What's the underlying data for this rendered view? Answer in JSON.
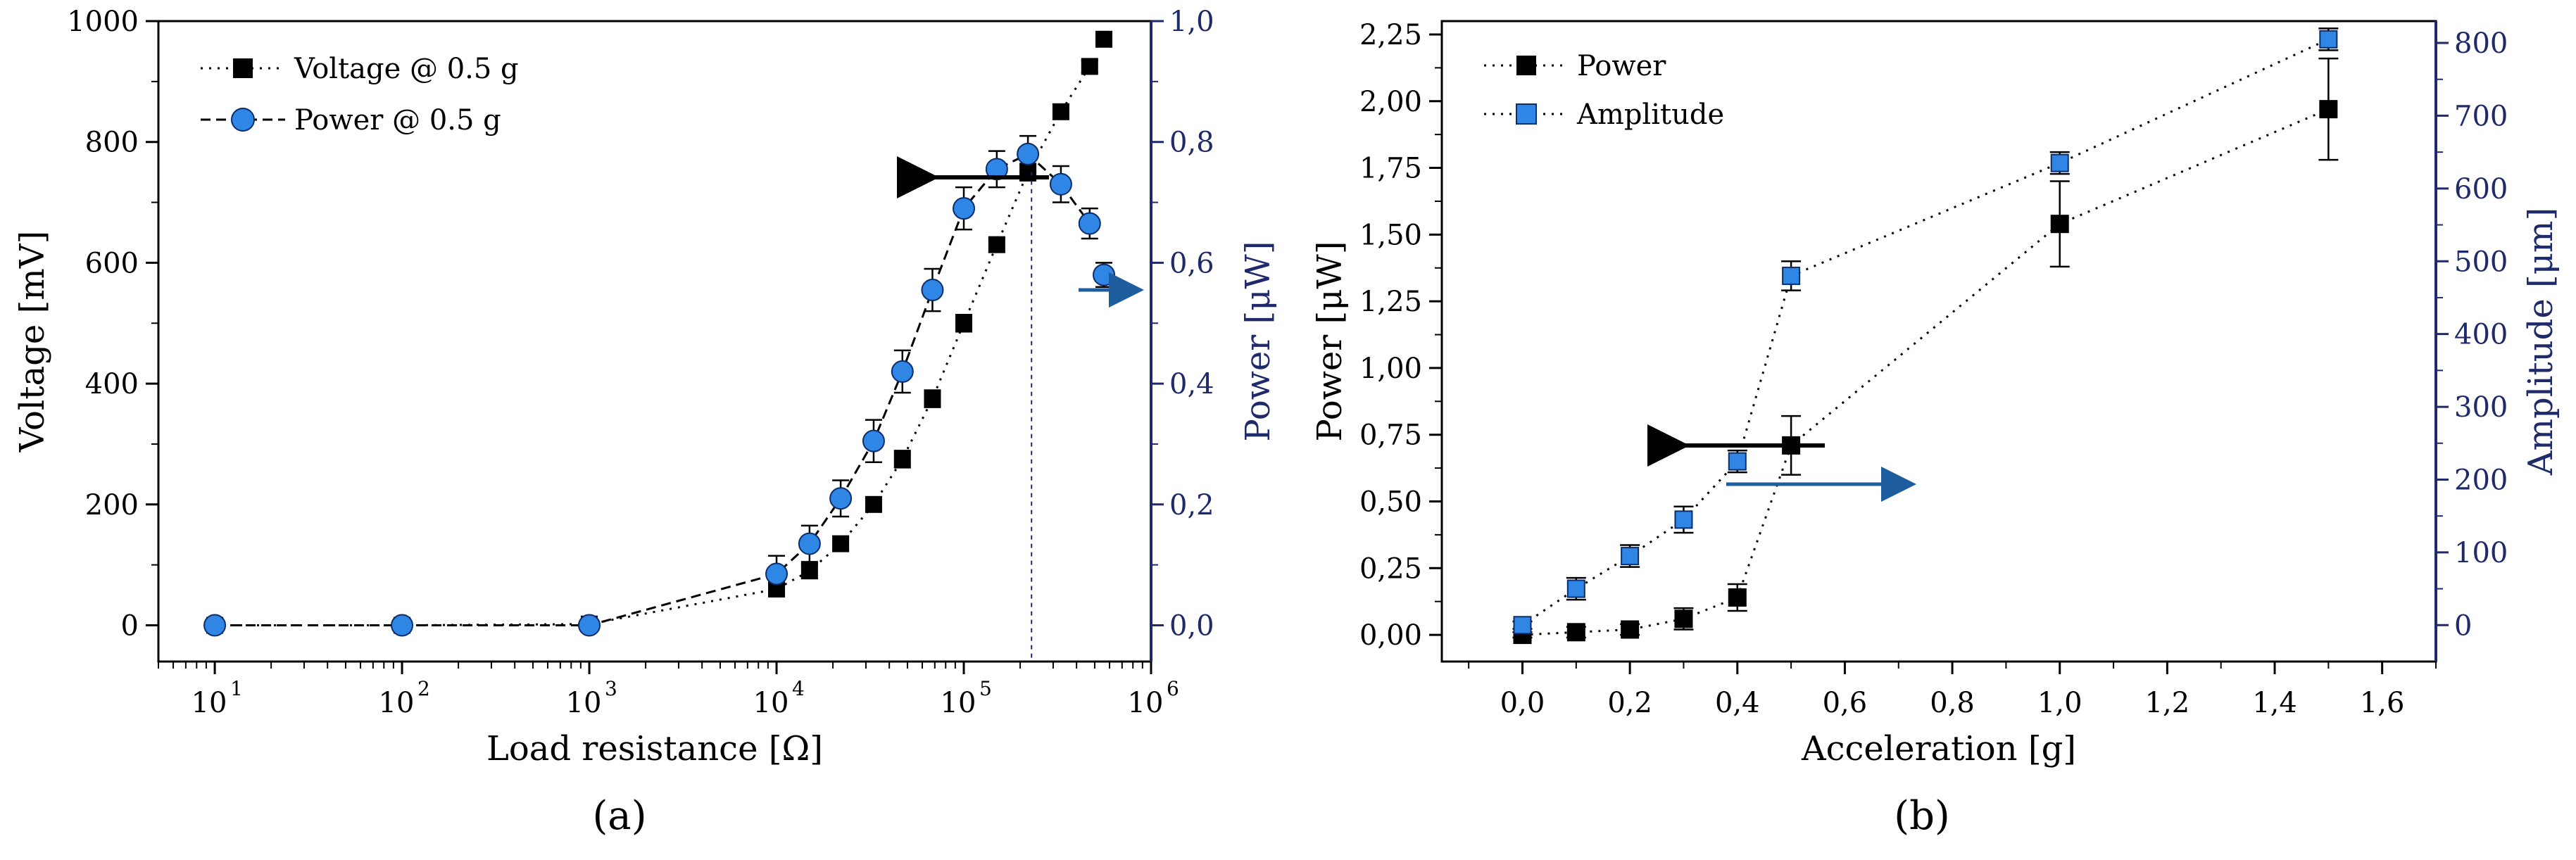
{
  "colors": {
    "axis_left": "#000000",
    "axis_right": "#1f2a6b",
    "blue_marker": "#2f86e4",
    "arrow_blue": "#1f5e9e"
  },
  "chart_data": [
    {
      "type": "scatter",
      "panel_label": "(a)",
      "xlabel": "Load resistance  [Ω]",
      "ylabel": "Voltage  [mV]",
      "y2label": "Power  [μW]",
      "xscale": "log",
      "xlim": [
        5,
        1000000
      ],
      "ylim": [
        -60,
        1000
      ],
      "y2lim": [
        -0.06,
        1.0
      ],
      "x_ticks": [
        10,
        100,
        1000,
        10000,
        100000,
        1000000
      ],
      "x_tick_exponents": [
        "1",
        "2",
        "3",
        "4",
        "5",
        "6"
      ],
      "y_ticks": [
        "0",
        "200",
        "400",
        "600",
        "800",
        "1000"
      ],
      "y2_ticks": [
        "0,0",
        "0,2",
        "0,4",
        "0,6",
        "0,8",
        "1,0"
      ],
      "legend_position": "top-left",
      "series": [
        {
          "name": "Voltage @ 0.5 g",
          "axis": "left",
          "marker": "square",
          "line": "dotted",
          "x": [
            10,
            100,
            1000,
            10000,
            15000,
            22000,
            33000,
            47000,
            68000,
            100000,
            150000,
            220000,
            330000,
            470000
          ],
          "y": [
            0,
            0,
            2,
            60,
            90,
            135,
            200,
            275,
            375,
            500,
            630,
            750,
            850,
            925
          ],
          "err": [
            3,
            3,
            3,
            10,
            12,
            12,
            12,
            14,
            14,
            14,
            12,
            14,
            12,
            10
          ]
        },
        {
          "name": "Power @ 0.5 g",
          "axis": "right",
          "marker": "circle",
          "line": "dashed",
          "x": [
            10,
            100,
            1000,
            10000,
            15000,
            22000,
            33000,
            47000,
            68000,
            100000,
            150000,
            220000,
            330000,
            470000
          ],
          "y": [
            0.0,
            0.0,
            0.0,
            0.085,
            0.135,
            0.21,
            0.305,
            0.42,
            0.555,
            0.69,
            0.755,
            0.78,
            0.73,
            0.665
          ],
          "err": [
            0.004,
            0.004,
            0.004,
            0.03,
            0.03,
            0.03,
            0.035,
            0.035,
            0.035,
            0.035,
            0.03,
            0.03,
            0.03,
            0.025
          ]
        }
      ],
      "extra_points": [
        {
          "x": 560000,
          "y": 970,
          "err": 8,
          "axis": "left"
        },
        {
          "x": 560000,
          "y": 0.58,
          "err": 0.02,
          "axis": "right"
        }
      ],
      "vline_x": 230000
    },
    {
      "type": "scatter",
      "panel_label": "(b)",
      "xlabel": "Acceleration  [g]",
      "ylabel": "Power  [μW]",
      "y2label": "Amplitude  [μm]",
      "xlim": [
        -0.15,
        1.7
      ],
      "ylim": [
        -0.1,
        2.3
      ],
      "y2lim": [
        -50,
        830
      ],
      "x_ticks": [
        "0,0",
        "0,2",
        "0,4",
        "0,6",
        "0,8",
        "1,0",
        "1,2",
        "1,4",
        "1,6"
      ],
      "y_ticks": [
        "0,00",
        "0,25",
        "0,50",
        "0,75",
        "1,00",
        "1,25",
        "1,50",
        "1,75",
        "2,00",
        "2,25"
      ],
      "y2_ticks": [
        "0",
        "100",
        "200",
        "300",
        "400",
        "500",
        "600",
        "700",
        "800"
      ],
      "legend_position": "top-left",
      "series": [
        {
          "name": "Power",
          "axis": "left",
          "marker": "square",
          "line": "dotted",
          "x": [
            0.0,
            0.1,
            0.2,
            0.3,
            0.4,
            0.5,
            1.0,
            1.5
          ],
          "y": [
            0.0,
            0.01,
            0.02,
            0.06,
            0.14,
            0.71,
            1.54,
            1.97
          ],
          "err": [
            0.01,
            0.02,
            0.02,
            0.04,
            0.05,
            0.11,
            0.16,
            0.19
          ]
        },
        {
          "name": "Amplitude",
          "axis": "right",
          "marker": "square",
          "line": "dotted",
          "x": [
            0.0,
            0.1,
            0.2,
            0.3,
            0.4,
            0.5,
            1.0,
            1.5
          ],
          "y": [
            0,
            50,
            95,
            145,
            225,
            480,
            635,
            805
          ],
          "err": [
            5,
            15,
            15,
            18,
            15,
            20,
            15,
            15
          ]
        }
      ]
    }
  ]
}
